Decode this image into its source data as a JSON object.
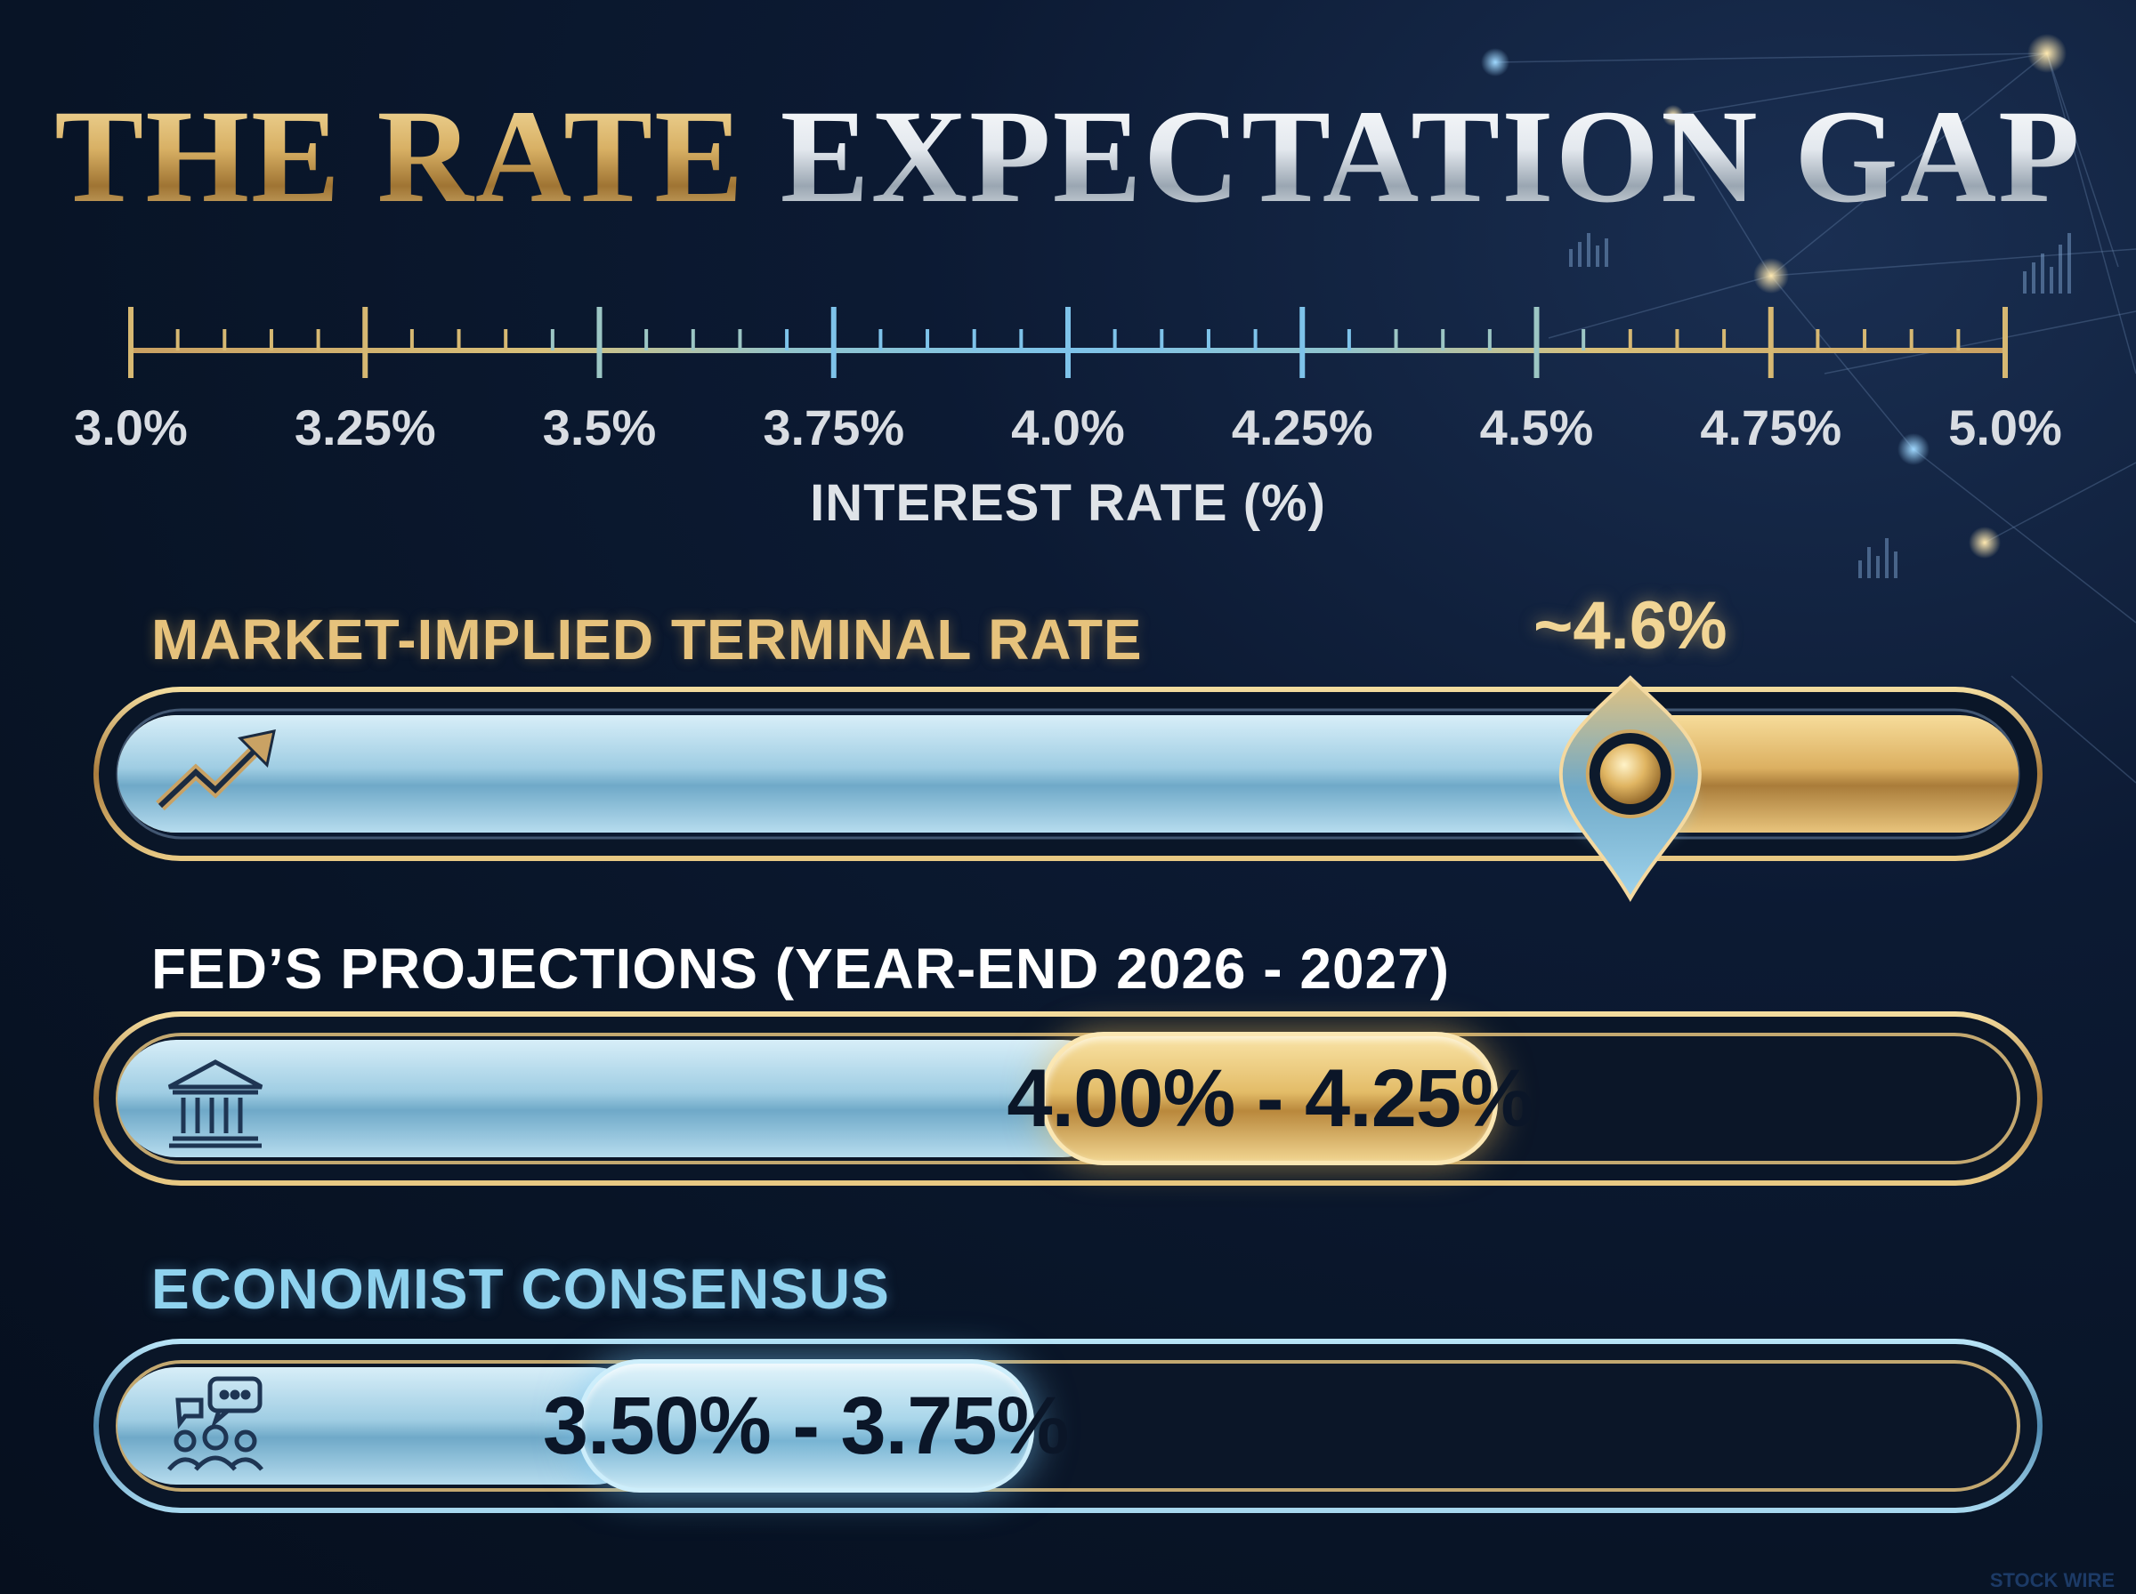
{
  "title": {
    "part1": "THE RATE",
    "part2": "EXPECTATION GAP"
  },
  "chart_data": {
    "type": "bar",
    "axis": {
      "label": "INTEREST RATE (%)",
      "range": [
        3.0,
        5.0
      ],
      "ticks": [
        {
          "value": 3.0,
          "label": "3.0%"
        },
        {
          "value": 3.25,
          "label": "3.25%"
        },
        {
          "value": 3.5,
          "label": "3.5%"
        },
        {
          "value": 3.75,
          "label": "3.75%"
        },
        {
          "value": 4.0,
          "label": "4.0%"
        },
        {
          "value": 4.25,
          "label": "4.25%"
        },
        {
          "value": 4.5,
          "label": "4.5%"
        },
        {
          "value": 4.75,
          "label": "4.75%"
        },
        {
          "value": 5.0,
          "label": "5.0%"
        }
      ]
    },
    "bars": [
      {
        "name": "MARKET-IMPLIED TERMINAL RATE",
        "value": 4.6,
        "value_label": "~4.6%",
        "icon": "trending-up-arrow-icon"
      },
      {
        "name": "FED’S PROJECTIONS (YEAR-END 2026 - 2027)",
        "range": [
          4.0,
          4.25
        ],
        "value_label": "4.00% - 4.25%",
        "icon": "bank-building-icon"
      },
      {
        "name": "ECONOMIST CONSENSUS",
        "range": [
          3.5,
          3.75
        ],
        "value_label": "3.50% - 3.75%",
        "icon": "group-chat-icon"
      }
    ]
  },
  "colors": {
    "background": "#0a1628",
    "gold": "#d9b46a",
    "blue": "#8fd2ee"
  },
  "watermark": "STOCK WIRE"
}
